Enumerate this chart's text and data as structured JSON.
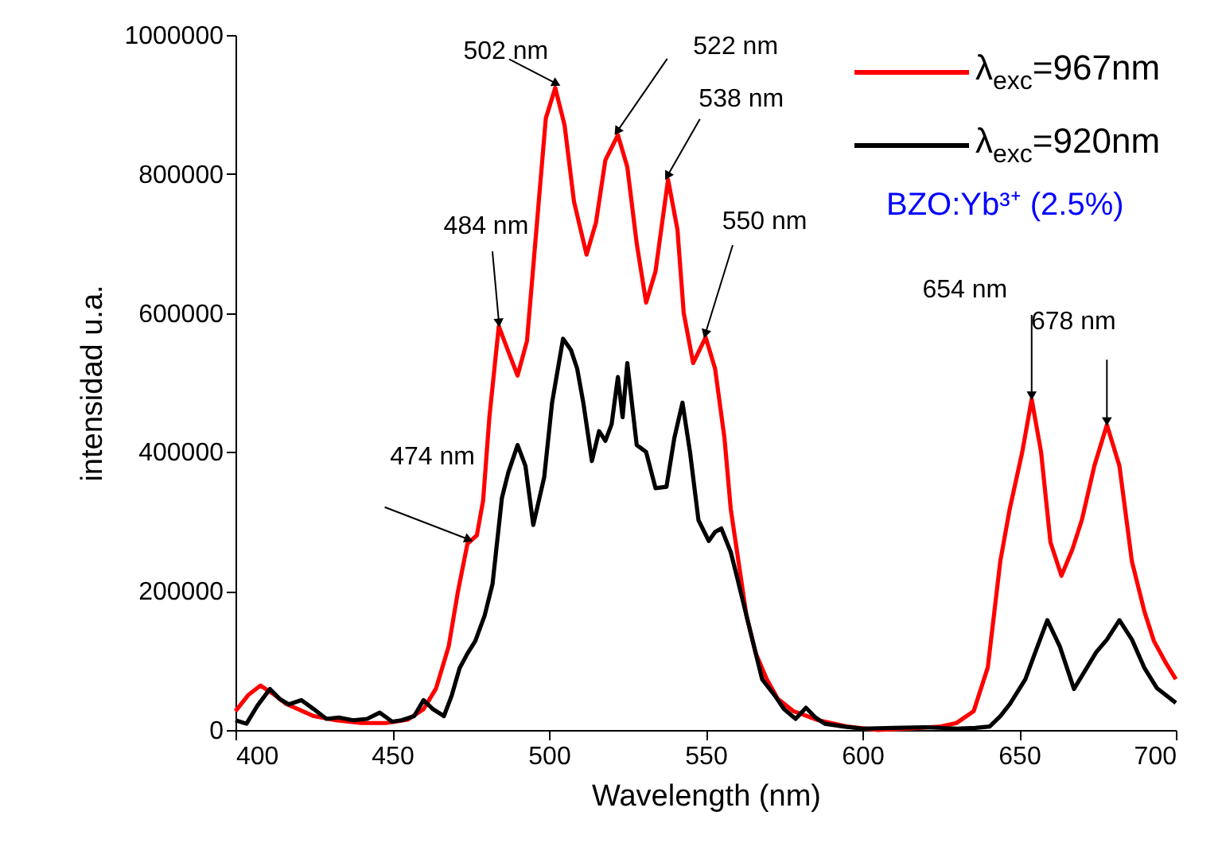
{
  "chart_data": {
    "type": "line",
    "xlabel": "Wavelength (nm)",
    "ylabel": "intensidad u.a.",
    "xlim": [
      400,
      700
    ],
    "xticks": [
      400,
      450,
      500,
      550,
      600,
      650,
      700
    ],
    "ylim": [
      0,
      1000000
    ],
    "yticks": [
      0,
      200000,
      400000,
      600000,
      800000,
      1000000
    ],
    "grid": false,
    "legend": "top right",
    "series": [
      {
        "name": "λ$_{exc}$=967nm",
        "color": "#ff0000",
        "x": [
          400,
          404,
          408,
          412,
          416,
          420,
          425,
          432,
          440,
          448,
          455,
          460,
          464,
          468,
          471,
          474,
          477,
          479,
          481,
          484,
          487,
          490,
          493,
          496,
          499,
          502,
          505,
          508,
          512,
          515,
          518,
          522,
          525,
          528,
          531,
          534,
          538,
          541,
          543,
          546,
          550,
          553,
          556,
          558,
          563,
          566,
          569.5,
          573,
          578,
          586,
          595,
          605,
          615,
          625,
          630,
          635.5,
          640,
          644,
          647,
          651,
          654,
          657,
          660,
          663.5,
          667,
          670,
          674,
          678,
          682,
          686,
          690,
          693,
          697,
          700
        ],
        "values": [
          27000,
          50000,
          64000,
          52000,
          38000,
          30000,
          20000,
          14000,
          10000,
          10000,
          15000,
          30000,
          60000,
          120000,
          200000,
          268000,
          280000,
          330000,
          450000,
          581000,
          545000,
          510000,
          560000,
          720000,
          880000,
          924000,
          870000,
          760000,
          684000,
          730000,
          820000,
          856000,
          810000,
          700000,
          615000,
          660000,
          792000,
          720000,
          600000,
          528000,
          565000,
          520000,
          420000,
          318000,
          165000,
          110000,
          73000,
          45000,
          27000,
          14000,
          5000,
          0,
          2000,
          5000,
          10000,
          27000,
          90000,
          243000,
          318000,
          400000,
          476000,
          400000,
          270000,
          222000,
          260000,
          302000,
          380000,
          439000,
          380000,
          242000,
          170000,
          128000,
          95000,
          73000
        ]
      },
      {
        "name": "λ$_{exc}$=920nm",
        "color": "#000000",
        "x": [
          400,
          403.5,
          407,
          411,
          414,
          417,
          421,
          425,
          429,
          433,
          437.5,
          442,
          446,
          450,
          453,
          457,
          460,
          463,
          466.5,
          469,
          471.5,
          474,
          476.5,
          479.5,
          482,
          485,
          487,
          490,
          492.5,
          495,
          498.5,
          501,
          504.5,
          507,
          509,
          511,
          513.7,
          516,
          518,
          520,
          522,
          523.5,
          525,
          528,
          531,
          534,
          537.5,
          540,
          542.6,
          545,
          547.7,
          551,
          553,
          555,
          558,
          560,
          563,
          568,
          572,
          575,
          578.7,
          582,
          585,
          588,
          594,
          600,
          610,
          620,
          630,
          636,
          640.6,
          644,
          647,
          652,
          655,
          659,
          663,
          667.5,
          671,
          674.6,
          678,
          682,
          686,
          690,
          694,
          700
        ],
        "values": [
          14000,
          9000,
          35000,
          59000,
          45000,
          37000,
          43000,
          30000,
          16000,
          18000,
          14000,
          16000,
          25000,
          12000,
          14000,
          20000,
          43000,
          30000,
          20000,
          50000,
          89000,
          110000,
          128000,
          165000,
          210000,
          334000,
          370000,
          410000,
          380000,
          295000,
          364000,
          471000,
          563000,
          547000,
          520000,
          470000,
          387000,
          430000,
          416000,
          440000,
          508000,
          450000,
          528000,
          410000,
          400000,
          348000,
          350000,
          420000,
          471000,
          400000,
          302000,
          272000,
          285000,
          290000,
          256000,
          220000,
          165000,
          73000,
          50000,
          30000,
          16000,
          32000,
          18000,
          9000,
          5000,
          2000,
          3000,
          4000,
          2000,
          3000,
          5000,
          20000,
          37000,
          73000,
          110000,
          158000,
          120000,
          59000,
          85000,
          112000,
          130000,
          158000,
          130000,
          89000,
          60000,
          39000
        ]
      }
    ],
    "annotations": [
      {
        "text": "474 nm",
        "x": 474,
        "y": 268000
      },
      {
        "text": "484 nm",
        "x": 484,
        "y": 581000
      },
      {
        "text": "502 nm",
        "x": 502,
        "y": 924000
      },
      {
        "text": "522 nm",
        "x": 522,
        "y": 856000
      },
      {
        "text": "538 nm",
        "x": 538,
        "y": 792000
      },
      {
        "text": "550 nm",
        "x": 550,
        "y": 565000
      },
      {
        "text": "654 nm",
        "x": 654,
        "y": 476000
      },
      {
        "text": "678 nm",
        "x": 678,
        "y": 439000
      },
      "BZO:Yb³⁺ (2.5%)"
    ]
  }
}
